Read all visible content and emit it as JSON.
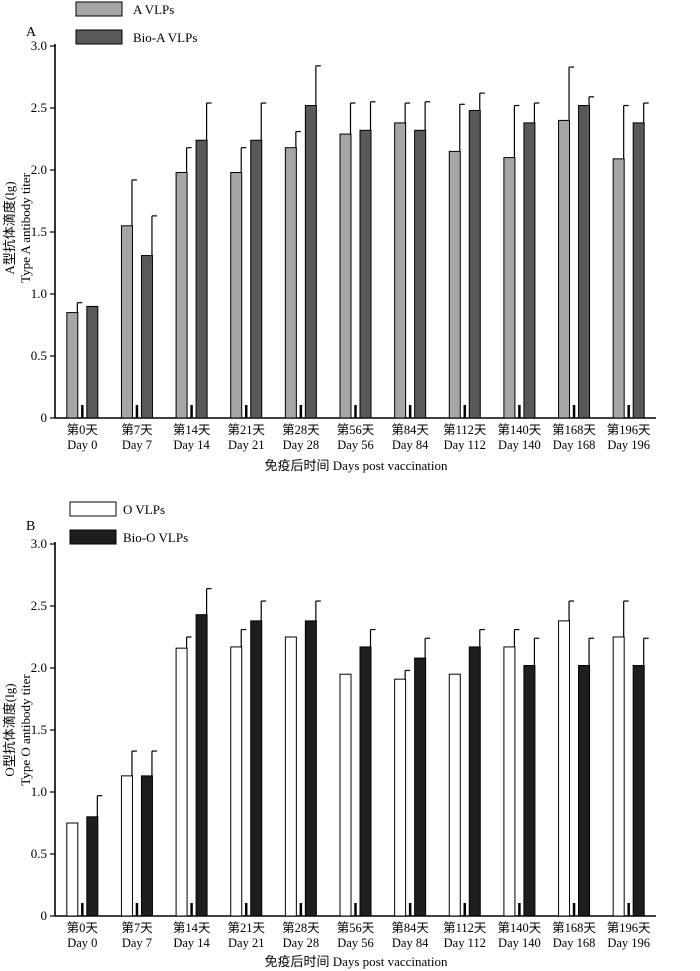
{
  "colors": {
    "vlp_a": "#a6a6a6",
    "bio_a": "#595959",
    "vlp_o": "#ffffff",
    "bio_o": "#1e1e1e",
    "axis": "#000000"
  },
  "chart_data": [
    {
      "type": "bar",
      "panel": "A",
      "legend": [
        "A VLPs",
        "Bio-A VLPs"
      ],
      "categories": [
        {
          "cn": "第0天",
          "en": "Day 0"
        },
        {
          "cn": "第7天",
          "en": "Day 7"
        },
        {
          "cn": "第14天",
          "en": "Day 14"
        },
        {
          "cn": "第21天",
          "en": "Day 21"
        },
        {
          "cn": "第28天",
          "en": "Day 28"
        },
        {
          "cn": "第56天",
          "en": "Day 56"
        },
        {
          "cn": "第84天",
          "en": "Day 84"
        },
        {
          "cn": "第112天",
          "en": "Day 112"
        },
        {
          "cn": "第140天",
          "en": "Day 140"
        },
        {
          "cn": "第168天",
          "en": "Day 168"
        },
        {
          "cn": "第196天",
          "en": "Day 196"
        }
      ],
      "series": [
        {
          "name": "A VLPs",
          "values": [
            0.85,
            1.55,
            1.98,
            1.98,
            2.18,
            2.29,
            2.38,
            2.15,
            2.1,
            2.4,
            2.09
          ],
          "errors": [
            0.08,
            0.37,
            0.2,
            0.2,
            0.13,
            0.25,
            0.16,
            0.38,
            0.42,
            0.43,
            0.43
          ]
        },
        {
          "name": "Bio-A VLPs",
          "values": [
            0.9,
            1.31,
            2.24,
            2.24,
            2.52,
            2.32,
            2.32,
            2.48,
            2.38,
            2.52,
            2.38
          ],
          "errors": [
            0.0,
            0.32,
            0.3,
            0.3,
            0.32,
            0.23,
            0.23,
            0.14,
            0.16,
            0.07,
            0.16
          ]
        }
      ],
      "ylim": [
        0,
        3.0
      ],
      "yticks": [
        "0",
        "0.5",
        "1.0",
        "1.5",
        "2.0",
        "2.5",
        "3.0"
      ],
      "ylabel_cn": "A型抗体滴度(lg)",
      "ylabel_en": "Type A antibody titer",
      "xlabel": "免疫后时间  Days post vaccination"
    },
    {
      "type": "bar",
      "panel": "B",
      "legend": [
        "O VLPs",
        "Bio-O VLPs"
      ],
      "categories": [
        {
          "cn": "第0天",
          "en": "Day 0"
        },
        {
          "cn": "第7天",
          "en": "Day 7"
        },
        {
          "cn": "第14天",
          "en": "Day 14"
        },
        {
          "cn": "第21天",
          "en": "Day 21"
        },
        {
          "cn": "第28天",
          "en": "Day 28"
        },
        {
          "cn": "第56天",
          "en": "Day 56"
        },
        {
          "cn": "第84天",
          "en": "Day 84"
        },
        {
          "cn": "第112天",
          "en": "Day 112"
        },
        {
          "cn": "第140天",
          "en": "Day 140"
        },
        {
          "cn": "第168天",
          "en": "Day 168"
        },
        {
          "cn": "第196天",
          "en": "Day 196"
        }
      ],
      "series": [
        {
          "name": "O VLPs",
          "values": [
            0.75,
            1.13,
            2.16,
            2.17,
            2.25,
            1.95,
            1.91,
            1.95,
            2.17,
            2.38,
            2.25
          ],
          "errors": [
            0.0,
            0.2,
            0.09,
            0.14,
            0.0,
            0.0,
            0.07,
            0.0,
            0.14,
            0.16,
            0.29
          ]
        },
        {
          "name": "Bio-O VLPs",
          "values": [
            0.8,
            1.13,
            2.43,
            2.38,
            2.38,
            2.17,
            2.08,
            2.17,
            2.02,
            2.02,
            2.02
          ],
          "errors": [
            0.17,
            0.2,
            0.21,
            0.16,
            0.16,
            0.14,
            0.16,
            0.14,
            0.22,
            0.22,
            0.22
          ]
        }
      ],
      "ylim": [
        0,
        3.0
      ],
      "yticks": [
        "0",
        "0.5",
        "1.0",
        "1.5",
        "2.0",
        "2.5",
        "3.0"
      ],
      "ylabel_cn": "O型抗体滴度(lg)",
      "ylabel_en": "Type O antibody titer",
      "xlabel": "免疫后时间  Days post vaccination"
    }
  ]
}
